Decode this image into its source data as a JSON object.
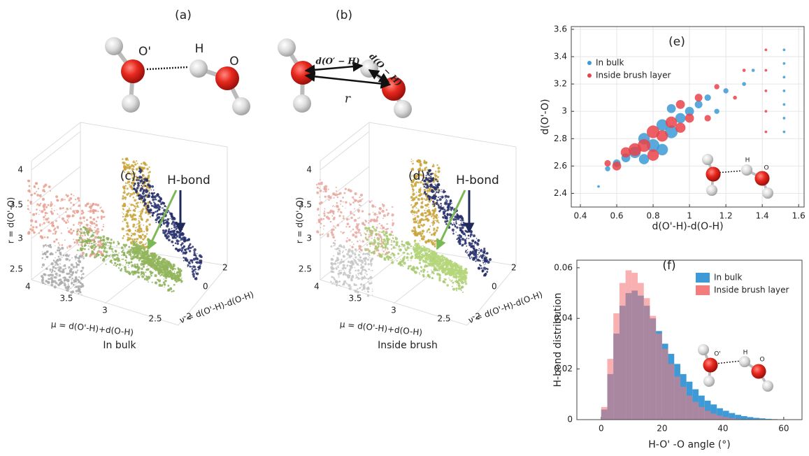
{
  "figure": {
    "a": {
      "label": "(a)",
      "atoms": [
        "O'",
        "H",
        "O"
      ]
    },
    "b": {
      "label": "(b)",
      "d1": "d(O′ − H)",
      "d2": "d(O − H)",
      "r": "r"
    },
    "c": {
      "label": "(c)",
      "hbond": "H-bond",
      "r_axis": "r = d(O'-O)",
      "mu_axis": "μ = d(O'-H)+d(O-H)",
      "nu_axis": "ν = d(O'-H)-d(O-H)",
      "r_ticks": [
        "4",
        "3.5",
        "3",
        "2.5"
      ],
      "mu_ticks": [
        "4",
        "3.5",
        "3",
        "2.5"
      ],
      "nu_ticks": [
        "-2",
        "0",
        "2"
      ],
      "caption": "In bulk"
    },
    "d": {
      "label": "(d)",
      "hbond": "H-bond",
      "r_axis": "r = d(O'-O)",
      "mu_axis": "μ = d(O'-H)+d(O-H)",
      "nu_axis": "ν = d(O'-H)-d(O-H)",
      "r_ticks": [
        "4",
        "3.5",
        "3",
        "2.5"
      ],
      "mu_ticks": [
        "4",
        "3.5",
        "3",
        "2.5"
      ],
      "nu_ticks": [
        "-2",
        "0",
        "2"
      ],
      "caption": "Inside brush"
    }
  },
  "chart_data": [
    {
      "type": "scatter",
      "title": "(e)",
      "xlabel": "d(O'-H)-d(O-H)",
      "ylabel": "d(O'-O)",
      "xlim": [
        0.35,
        1.63
      ],
      "xticks": [
        0.4,
        0.6,
        0.8,
        1,
        1.2,
        1.4,
        1.6
      ],
      "ylim": [
        2.3,
        3.62
      ],
      "yticks": [
        2.4,
        2.6,
        2.8,
        3,
        3.2,
        3.4,
        3.6
      ],
      "grid": true,
      "inset_labels": [
        "H",
        "O"
      ],
      "series": [
        {
          "name": "In bulk",
          "color": "#3d9ad6",
          "x": [
            0.5,
            0.55,
            0.6,
            0.65,
            0.7,
            0.75,
            0.8,
            0.85,
            0.9,
            0.95,
            1.0,
            0.9,
            1.05,
            1.1,
            0.75,
            0.85,
            1.15,
            1.2,
            1.3,
            1.35,
            1.52,
            1.52,
            1.52,
            1.52,
            1.52,
            1.52,
            1.52
          ],
          "values": [
            2.45,
            2.58,
            2.62,
            2.66,
            2.7,
            2.8,
            2.75,
            2.9,
            2.85,
            2.95,
            3.0,
            3.02,
            3.05,
            3.1,
            2.65,
            2.72,
            3.0,
            3.15,
            3.2,
            3.3,
            2.85,
            2.95,
            3.05,
            3.15,
            3.25,
            3.35,
            3.45
          ],
          "sizes": [
            1,
            3,
            5,
            6,
            8,
            8,
            9,
            8,
            9,
            7,
            6,
            6,
            5,
            4,
            7,
            8,
            3,
            3,
            2,
            1.5,
            1,
            1,
            1,
            1,
            1,
            1,
            1
          ]
        },
        {
          "name": "Inside brush layer",
          "color": "#e8434a",
          "x": [
            0.55,
            0.6,
            0.65,
            0.7,
            0.75,
            0.8,
            0.85,
            0.9,
            0.95,
            1.0,
            1.05,
            0.8,
            0.95,
            1.1,
            1.15,
            1.25,
            1.3,
            1.42,
            1.42,
            1.42,
            1.42,
            1.42
          ],
          "values": [
            2.62,
            2.6,
            2.7,
            2.72,
            2.75,
            2.85,
            2.82,
            2.92,
            2.88,
            2.95,
            3.1,
            2.68,
            3.05,
            2.95,
            3.18,
            3.1,
            3.3,
            2.85,
            3.0,
            3.15,
            3.3,
            3.45
          ],
          "sizes": [
            4,
            6,
            7,
            9,
            9,
            9,
            8,
            8,
            7,
            6,
            5,
            8,
            6,
            4,
            3,
            2,
            1.5,
            1,
            1,
            1,
            1,
            1
          ]
        }
      ]
    },
    {
      "type": "histogram",
      "title": "(f)",
      "xlabel": "H-O' -O angle (°)",
      "ylabel": "H-bond distribution",
      "xlim": [
        -8,
        66
      ],
      "xticks": [
        0,
        20,
        40,
        60
      ],
      "ylim": [
        0,
        0.063
      ],
      "yticks": [
        0,
        0.02,
        0.04,
        0.06
      ],
      "inset_labels": [
        "O'",
        "H",
        "O"
      ],
      "bins": [
        0,
        2,
        4,
        6,
        8,
        10,
        12,
        14,
        16,
        18,
        20,
        22,
        24,
        26,
        28,
        30,
        32,
        34,
        36,
        38,
        40,
        42,
        44,
        46,
        48,
        50,
        52,
        54,
        56,
        58,
        60,
        62,
        64,
        66
      ],
      "series": [
        {
          "name": "In bulk",
          "color": "#3d9ad6",
          "values": [
            0.004,
            0.018,
            0.034,
            0.045,
            0.05,
            0.051,
            0.049,
            0.045,
            0.04,
            0.035,
            0.03,
            0.026,
            0.022,
            0.018,
            0.015,
            0.012,
            0.0095,
            0.0075,
            0.006,
            0.0045,
            0.0035,
            0.0026,
            0.0019,
            0.0014,
            0.001,
            0.0007,
            0.0005,
            0.0003,
            0.0002,
            0.0001,
            5e-05,
            0,
            0
          ]
        },
        {
          "name": "Inside brush layer",
          "color": "#f47c7c",
          "values": [
            0.005,
            0.024,
            0.042,
            0.054,
            0.059,
            0.058,
            0.054,
            0.048,
            0.041,
            0.034,
            0.028,
            0.022,
            0.017,
            0.013,
            0.0095,
            0.007,
            0.005,
            0.0035,
            0.0024,
            0.0016,
            0.001,
            0.0006,
            0.0003,
            0.0001,
            0,
            0,
            0,
            0,
            0,
            0,
            0,
            0,
            0
          ]
        }
      ]
    }
  ]
}
